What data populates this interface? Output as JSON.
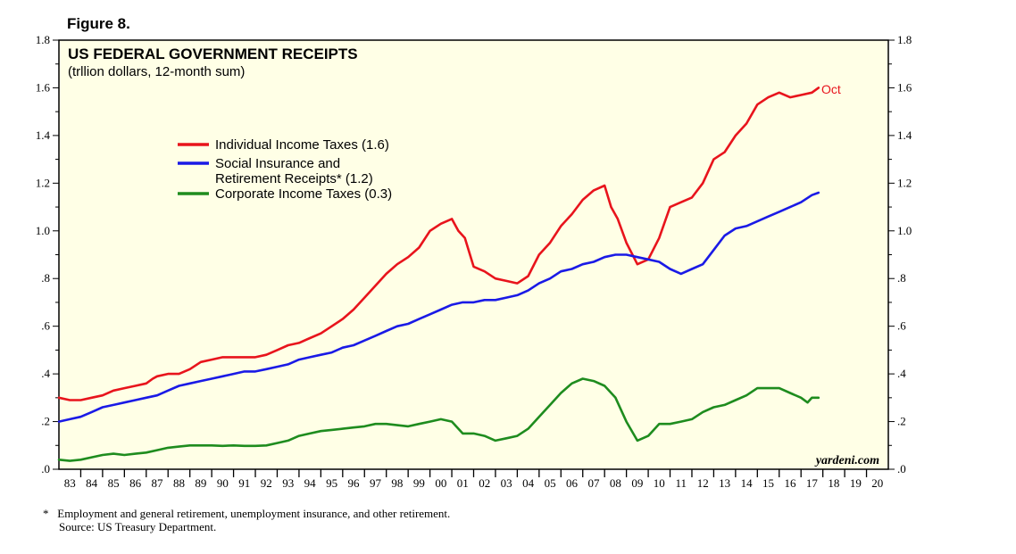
{
  "figure_label": "Figure 8.",
  "source_brand": "yardeni.com",
  "footnote": "*   Employment and general retirement, unemployment insurance, and other retirement.",
  "source": "Source: US Treasury Department.",
  "chart_data": {
    "type": "line",
    "title": "US FEDERAL GOVERNMENT RECEIPTS",
    "subtitle": "(trllion dollars, 12-month sum)",
    "ylim": [
      0,
      1.8
    ],
    "xlim": [
      1983,
      2021
    ],
    "y_ticks": [
      ".0",
      ".2",
      ".4",
      ".6",
      ".8",
      "1.0",
      "1.2",
      "1.4",
      "1.6",
      "1.8"
    ],
    "y_tick_values": [
      0,
      0.2,
      0.4,
      0.6,
      0.8,
      1.0,
      1.2,
      1.4,
      1.6,
      1.8
    ],
    "x_ticks": [
      "83",
      "84",
      "85",
      "86",
      "87",
      "88",
      "89",
      "90",
      "91",
      "92",
      "93",
      "94",
      "95",
      "96",
      "97",
      "98",
      "99",
      "00",
      "01",
      "02",
      "03",
      "04",
      "05",
      "06",
      "07",
      "08",
      "09",
      "10",
      "11",
      "12",
      "13",
      "14",
      "15",
      "16",
      "17",
      "18",
      "19",
      "20"
    ],
    "grid": false,
    "legend_position": "upper-left",
    "annotation": "Oct",
    "colors": {
      "background": "#ffffe6",
      "individual": "#e8141c",
      "social": "#1a1ae6",
      "corporate": "#1e8c1e"
    },
    "series": [
      {
        "name": "Individual Income Taxes (1.6)",
        "x": [
          1983,
          1983.5,
          1984,
          1984.5,
          1985,
          1985.5,
          1986,
          1986.5,
          1987,
          1987.3,
          1987.5,
          1988,
          1988.5,
          1989,
          1989.5,
          1990,
          1990.5,
          1991,
          1991.5,
          1992,
          1992.5,
          1993,
          1993.5,
          1994,
          1994.5,
          1995,
          1995.5,
          1996,
          1996.5,
          1997,
          1997.5,
          1998,
          1998.5,
          1999,
          1999.5,
          2000,
          2000.5,
          2001,
          2001.3,
          2001.6,
          2002,
          2002.5,
          2003,
          2003.5,
          2004,
          2004.5,
          2005,
          2005.5,
          2006,
          2006.5,
          2007,
          2007.5,
          2008,
          2008.3,
          2008.6,
          2009,
          2009.5,
          2010,
          2010.5,
          2011,
          2011.5,
          2012,
          2012.5,
          2013,
          2013.5,
          2014,
          2014.5,
          2015,
          2015.5,
          2016,
          2016.5,
          2017,
          2017.5,
          2017.8
        ],
        "values": [
          0.3,
          0.29,
          0.29,
          0.3,
          0.31,
          0.33,
          0.34,
          0.35,
          0.36,
          0.38,
          0.39,
          0.4,
          0.4,
          0.42,
          0.45,
          0.46,
          0.47,
          0.47,
          0.47,
          0.47,
          0.48,
          0.5,
          0.52,
          0.53,
          0.55,
          0.57,
          0.6,
          0.63,
          0.67,
          0.72,
          0.77,
          0.82,
          0.86,
          0.89,
          0.93,
          1.0,
          1.03,
          1.05,
          1.0,
          0.97,
          0.85,
          0.83,
          0.8,
          0.79,
          0.78,
          0.81,
          0.9,
          0.95,
          1.02,
          1.07,
          1.13,
          1.17,
          1.19,
          1.1,
          1.05,
          0.95,
          0.86,
          0.88,
          0.97,
          1.1,
          1.12,
          1.14,
          1.2,
          1.3,
          1.33,
          1.4,
          1.45,
          1.53,
          1.56,
          1.58,
          1.56,
          1.57,
          1.58,
          1.6
        ]
      },
      {
        "name": "Social Insurance and Retirement Receipts* (1.2)",
        "x": [
          1983,
          1983.5,
          1984,
          1984.5,
          1985,
          1985.5,
          1986,
          1986.5,
          1987,
          1987.5,
          1988,
          1988.5,
          1989,
          1989.5,
          1990,
          1990.5,
          1991,
          1991.5,
          1992,
          1992.5,
          1993,
          1993.5,
          1994,
          1994.5,
          1995,
          1995.5,
          1996,
          1996.5,
          1997,
          1997.5,
          1998,
          1998.5,
          1999,
          1999.5,
          2000,
          2000.5,
          2001,
          2001.5,
          2002,
          2002.5,
          2003,
          2003.5,
          2004,
          2004.5,
          2005,
          2005.5,
          2006,
          2006.5,
          2007,
          2007.5,
          2008,
          2008.5,
          2009,
          2009.5,
          2010,
          2010.5,
          2011,
          2011.5,
          2012,
          2012.5,
          2013,
          2013.5,
          2014,
          2014.5,
          2015,
          2015.5,
          2016,
          2016.5,
          2017,
          2017.5,
          2017.8
        ],
        "values": [
          0.2,
          0.21,
          0.22,
          0.24,
          0.26,
          0.27,
          0.28,
          0.29,
          0.3,
          0.31,
          0.33,
          0.35,
          0.36,
          0.37,
          0.38,
          0.39,
          0.4,
          0.41,
          0.41,
          0.42,
          0.43,
          0.44,
          0.46,
          0.47,
          0.48,
          0.49,
          0.51,
          0.52,
          0.54,
          0.56,
          0.58,
          0.6,
          0.61,
          0.63,
          0.65,
          0.67,
          0.69,
          0.7,
          0.7,
          0.71,
          0.71,
          0.72,
          0.73,
          0.75,
          0.78,
          0.8,
          0.83,
          0.84,
          0.86,
          0.87,
          0.89,
          0.9,
          0.9,
          0.89,
          0.88,
          0.87,
          0.84,
          0.82,
          0.84,
          0.86,
          0.92,
          0.98,
          1.01,
          1.02,
          1.04,
          1.06,
          1.08,
          1.1,
          1.12,
          1.15,
          1.16
        ]
      },
      {
        "name": "Corporate Income Taxes (0.3)",
        "x": [
          1983,
          1983.5,
          1984,
          1984.5,
          1985,
          1985.5,
          1986,
          1986.5,
          1987,
          1987.5,
          1988,
          1988.5,
          1989,
          1989.5,
          1990,
          1990.5,
          1991,
          1991.5,
          1992,
          1992.5,
          1993,
          1993.5,
          1994,
          1994.5,
          1995,
          1995.5,
          1996,
          1996.5,
          1997,
          1997.5,
          1998,
          1998.5,
          1999,
          1999.5,
          2000,
          2000.5,
          2001,
          2001.5,
          2002,
          2002.5,
          2003,
          2003.5,
          2004,
          2004.5,
          2005,
          2005.5,
          2006,
          2006.5,
          2007,
          2007.5,
          2008,
          2008.5,
          2009,
          2009.5,
          2010,
          2010.5,
          2011,
          2011.5,
          2012,
          2012.5,
          2013,
          2013.5,
          2014,
          2014.5,
          2015,
          2015.5,
          2016,
          2016.5,
          2017,
          2017.3,
          2017.5,
          2017.8
        ],
        "values": [
          0.04,
          0.035,
          0.04,
          0.05,
          0.06,
          0.065,
          0.06,
          0.065,
          0.07,
          0.08,
          0.09,
          0.095,
          0.1,
          0.1,
          0.1,
          0.098,
          0.1,
          0.098,
          0.098,
          0.1,
          0.11,
          0.12,
          0.14,
          0.15,
          0.16,
          0.165,
          0.17,
          0.175,
          0.18,
          0.19,
          0.19,
          0.185,
          0.18,
          0.19,
          0.2,
          0.21,
          0.2,
          0.15,
          0.15,
          0.14,
          0.12,
          0.13,
          0.14,
          0.17,
          0.22,
          0.27,
          0.32,
          0.36,
          0.38,
          0.37,
          0.35,
          0.3,
          0.2,
          0.12,
          0.14,
          0.19,
          0.19,
          0.2,
          0.21,
          0.24,
          0.26,
          0.27,
          0.29,
          0.31,
          0.34,
          0.34,
          0.34,
          0.32,
          0.3,
          0.28,
          0.3,
          0.3
        ]
      }
    ]
  }
}
